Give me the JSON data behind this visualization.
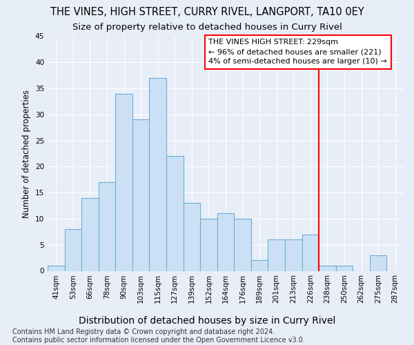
{
  "title": "THE VINES, HIGH STREET, CURRY RIVEL, LANGPORT, TA10 0EY",
  "subtitle": "Size of property relative to detached houses in Curry Rivel",
  "xlabel": "Distribution of detached houses by size in Curry Rivel",
  "ylabel": "Number of detached properties",
  "bar_color": "#cce0f5",
  "bar_edge_color": "#6baed6",
  "background_color": "#e8eef8",
  "grid_color": "#ffffff",
  "categories": [
    "41sqm",
    "53sqm",
    "66sqm",
    "78sqm",
    "90sqm",
    "103sqm",
    "115sqm",
    "127sqm",
    "139sqm",
    "152sqm",
    "164sqm",
    "176sqm",
    "189sqm",
    "201sqm",
    "213sqm",
    "226sqm",
    "238sqm",
    "250sqm",
    "262sqm",
    "275sqm",
    "287sqm"
  ],
  "values": [
    1,
    8,
    14,
    17,
    34,
    29,
    37,
    22,
    13,
    10,
    11,
    10,
    2,
    6,
    6,
    7,
    1,
    1,
    0,
    3,
    0
  ],
  "vline_color": "red",
  "vline_x": 15.5,
  "annotation_text": "THE VINES HIGH STREET: 229sqm\n← 96% of detached houses are smaller (221)\n4% of semi-detached houses are larger (10) →",
  "annotation_box_color": "white",
  "annotation_box_edge_color": "red",
  "footnote": "Contains HM Land Registry data © Crown copyright and database right 2024.\nContains public sector information licensed under the Open Government Licence v3.0.",
  "ylim": [
    0,
    45
  ],
  "yticks": [
    0,
    5,
    10,
    15,
    20,
    25,
    30,
    35,
    40,
    45
  ],
  "title_fontsize": 10.5,
  "subtitle_fontsize": 9.5,
  "xlabel_fontsize": 10,
  "ylabel_fontsize": 8.5,
  "tick_fontsize": 7.5,
  "annotation_fontsize": 8,
  "footnote_fontsize": 7.0
}
